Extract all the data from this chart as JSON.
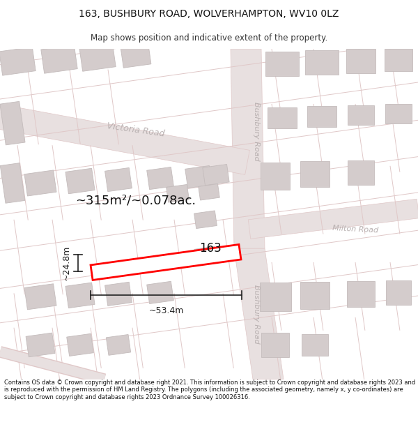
{
  "title_line1": "163, BUSHBURY ROAD, WOLVERHAMPTON, WV10 0LZ",
  "title_line2": "Map shows position and indicative extent of the property.",
  "footer": "Contains OS data © Crown copyright and database right 2021. This information is subject to Crown copyright and database rights 2023 and is reproduced with the permission of HM Land Registry. The polygons (including the associated geometry, namely x, y co-ordinates) are subject to Crown copyright and database rights 2023 Ordnance Survey 100026316.",
  "bg_color": "#f2eeee",
  "road_fill": "#e8e0e0",
  "road_line": "#e0c8c8",
  "bld_fill": "#d4cccc",
  "bld_edge": "#c4bcbc",
  "plot_fill": "#ffffff",
  "plot_edge": "#ff0000",
  "dim_color": "#222222",
  "road_label": "#b8b0b0",
  "area_text": "~315m²/~0.078ac.",
  "num_text": "163",
  "dim_w": "~53.4m",
  "dim_h": "~24.8m",
  "header_bg": "#ffffff",
  "footer_bg": "#ffffff",
  "title_fs": 10,
  "subtitle_fs": 8.5,
  "footer_fs": 6.0
}
